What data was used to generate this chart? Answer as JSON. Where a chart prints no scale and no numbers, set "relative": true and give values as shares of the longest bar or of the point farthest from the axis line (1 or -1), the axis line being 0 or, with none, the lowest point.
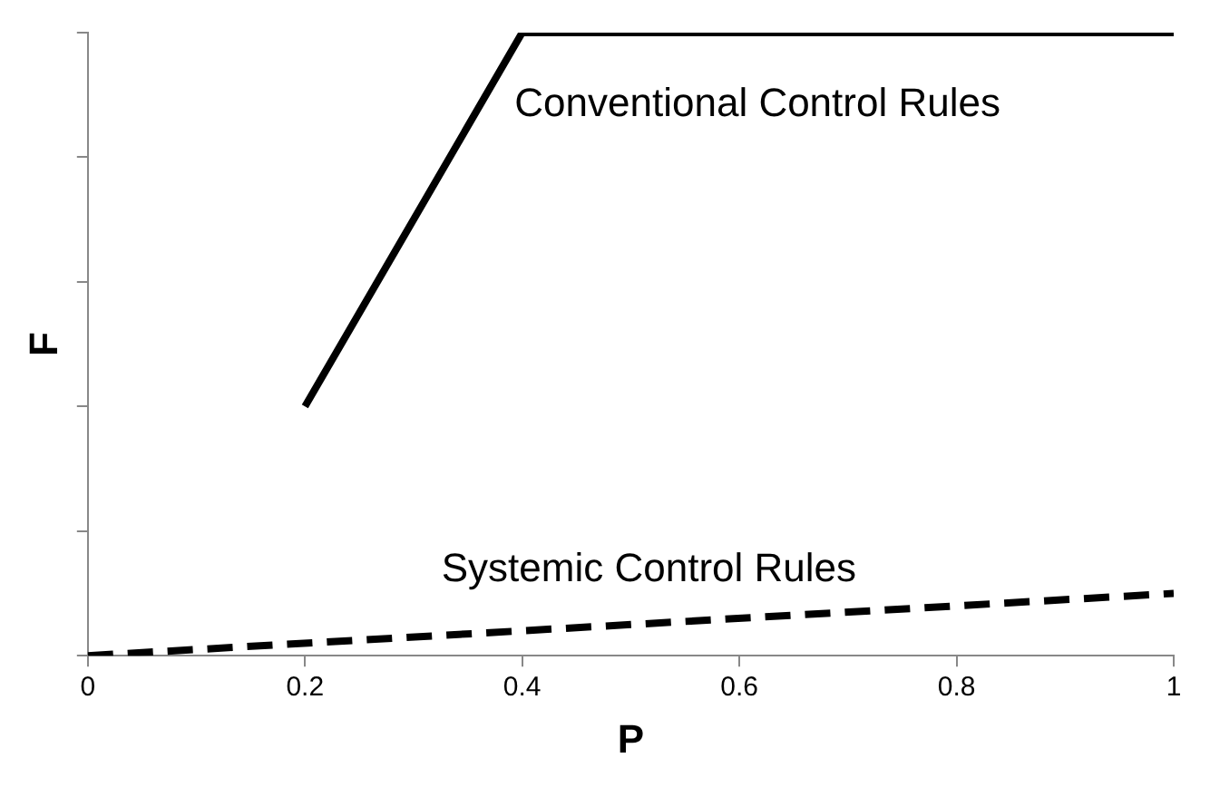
{
  "chart_data": {
    "type": "line",
    "xlabel": "P",
    "ylabel": "F",
    "relative": true,
    "xlim": [
      0,
      1
    ],
    "xticks": [
      0,
      0.2,
      0.4,
      0.6,
      0.8,
      1
    ],
    "tick_labels": "x",
    "grid": false,
    "legend": false,
    "marker": "none",
    "series": [
      {
        "name": "Conventional Control Rules",
        "color": "#000000",
        "x": [
          0.2,
          0.4,
          1
        ],
        "values": [
          0.4,
          1,
          1
        ],
        "line_style": "solid"
      },
      {
        "name": "Systemic Control Rules",
        "color": "#000000",
        "x": [
          0,
          1
        ],
        "values": [
          0,
          0.1
        ],
        "line_style": "dashed"
      }
    ]
  }
}
